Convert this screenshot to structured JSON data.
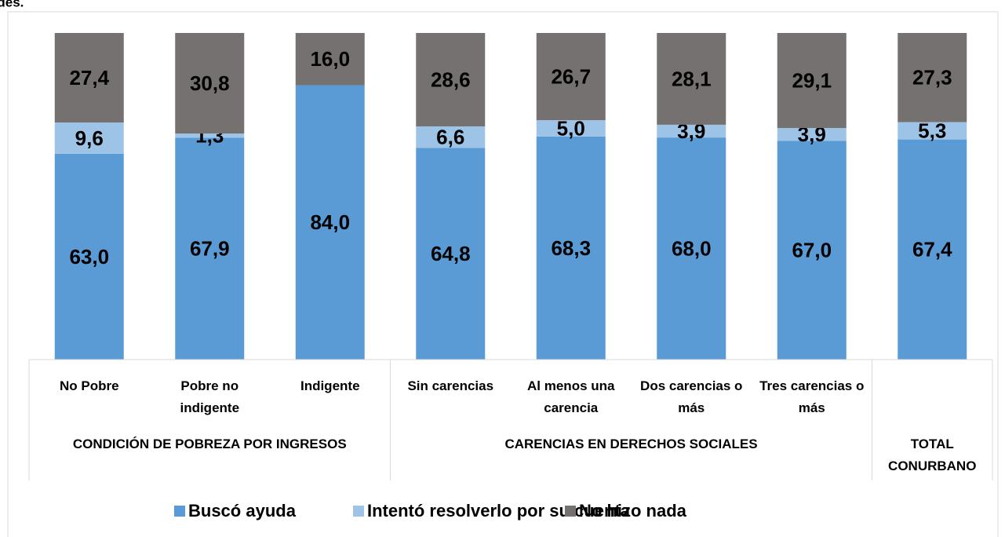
{
  "caption": "udes.",
  "chart_data": {
    "type": "stacked_bar",
    "groups": [
      {
        "name": "CONDICIÓN DE POBREZA POR INGRESOS",
        "categories": [
          "No Pobre",
          "Pobre no indigente",
          "Indigente"
        ]
      },
      {
        "name": "CARENCIAS EN DERECHOS SOCIALES",
        "categories": [
          "Sin carencias",
          "Al menos una carencia",
          "Dos carencias o más",
          "Tres carencias o más"
        ]
      },
      {
        "name": "TOTAL CONURBANO",
        "categories": [
          null
        ]
      }
    ],
    "ylim": [
      0,
      100
    ],
    "legend": "bottom",
    "series": [
      {
        "name": "Buscó ayuda",
        "color": "#5b9bd5",
        "values": [
          63.0,
          67.9,
          84.0,
          64.8,
          68.3,
          68.0,
          67.0,
          67.4
        ],
        "value_labels": [
          "63,0",
          "67,9",
          "84,0",
          "64,8",
          "68,3",
          "68,0",
          "67,0",
          "67,4"
        ]
      },
      {
        "name": "Intentó resolverlo por su cuenta",
        "color": "#9dc3e6",
        "values": [
          9.6,
          1.3,
          null,
          6.6,
          5.0,
          3.9,
          3.9,
          5.3
        ],
        "value_labels": [
          "9,6",
          "1,3",
          null,
          "6,6",
          "5,0",
          "3,9",
          "3,9",
          "5,3"
        ]
      },
      {
        "name": "No hizo nada",
        "color": "#767171",
        "values": [
          27.4,
          30.8,
          16.0,
          28.6,
          26.7,
          28.1,
          29.1,
          27.3
        ],
        "value_labels": [
          "27,4",
          "30,8",
          "16,0",
          "28,6",
          "26,7",
          "28,1",
          "29,1",
          "27,3"
        ]
      }
    ]
  }
}
